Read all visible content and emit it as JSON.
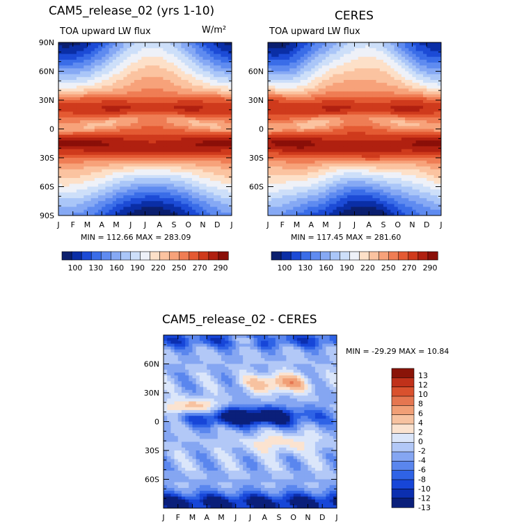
{
  "chart_data": [
    {
      "type": "heatmap",
      "title": "CAM5_release_02 (yrs 1-10)",
      "subtitle": "TOA upward LW flux",
      "units": "W/m²",
      "stats": "MIN = 112.66  MAX = 283.09",
      "x_ticks": [
        "J",
        "F",
        "M",
        "A",
        "M",
        "J",
        "J",
        "A",
        "S",
        "O",
        "N",
        "D",
        "J"
      ],
      "y_ticks": [
        "90N",
        "60N",
        "30N",
        "0",
        "30S",
        "60S",
        "90S"
      ],
      "ylim": [
        -90,
        90
      ],
      "colorbar": {
        "labels": [
          "100",
          "130",
          "160",
          "190",
          "220",
          "250",
          "270",
          "290"
        ],
        "levels": [
          90,
          100,
          110,
          120,
          130,
          140,
          150,
          160,
          170,
          180,
          190,
          200,
          210,
          220,
          230,
          240,
          250,
          260,
          270,
          280,
          290,
          300
        ]
      }
    },
    {
      "type": "heatmap",
      "title": "CERES",
      "subtitle": "TOA upward LW flux",
      "stats": "MIN = 117.45  MAX = 281.60",
      "x_ticks": [
        "J",
        "F",
        "M",
        "A",
        "M",
        "J",
        "J",
        "A",
        "S",
        "O",
        "N",
        "D",
        "J"
      ],
      "y_ticks": [
        "60N",
        "30N",
        "0",
        "30S",
        "60S"
      ],
      "ylim": [
        -90,
        90
      ],
      "colorbar": {
        "labels": [
          "100",
          "130",
          "160",
          "190",
          "220",
          "250",
          "270",
          "290"
        ]
      }
    },
    {
      "type": "heatmap",
      "title": "CAM5_release_02 - CERES",
      "stats": "MIN = -29.29 MAX =  10.84",
      "x_ticks": [
        "J",
        "F",
        "M",
        "A",
        "M",
        "J",
        "J",
        "A",
        "S",
        "O",
        "N",
        "D",
        "J"
      ],
      "y_ticks": [
        "60N",
        "30N",
        "0",
        "30S",
        "60S"
      ],
      "ylim": [
        -90,
        90
      ],
      "colorbar": {
        "labels": [
          "13",
          "12",
          "10",
          "8",
          "6",
          "4",
          "2",
          "0",
          "-2",
          "-4",
          "-6",
          "-8",
          "-10",
          "-12",
          "-13"
        ],
        "levels": [
          13,
          12,
          10,
          8,
          6,
          4,
          2,
          0,
          -2,
          -4,
          -6,
          -8,
          -10,
          -12,
          -13
        ]
      }
    }
  ],
  "colors": {
    "seq": [
      "#0b1f6e",
      "#0a2ea6",
      "#1c4bd6",
      "#3a6de8",
      "#5f8bf0",
      "#86a9f4",
      "#aac6f8",
      "#cddff9",
      "#eef1f8",
      "#fde0c8",
      "#fbc3a0",
      "#f7a27a",
      "#ef7d54",
      "#e45a33",
      "#cf3a1c",
      "#b02010",
      "#8a0f08"
    ],
    "diff": [
      "#0a1f7a",
      "#0b2fb0",
      "#1746d8",
      "#2f63e6",
      "#5a86ee",
      "#85a6f2",
      "#b2c8f7",
      "#dbe6fa",
      "#fbe3d0",
      "#f7c2a0",
      "#f19f76",
      "#e57650",
      "#d9512e",
      "#c0311a",
      "#8a1408"
    ]
  }
}
